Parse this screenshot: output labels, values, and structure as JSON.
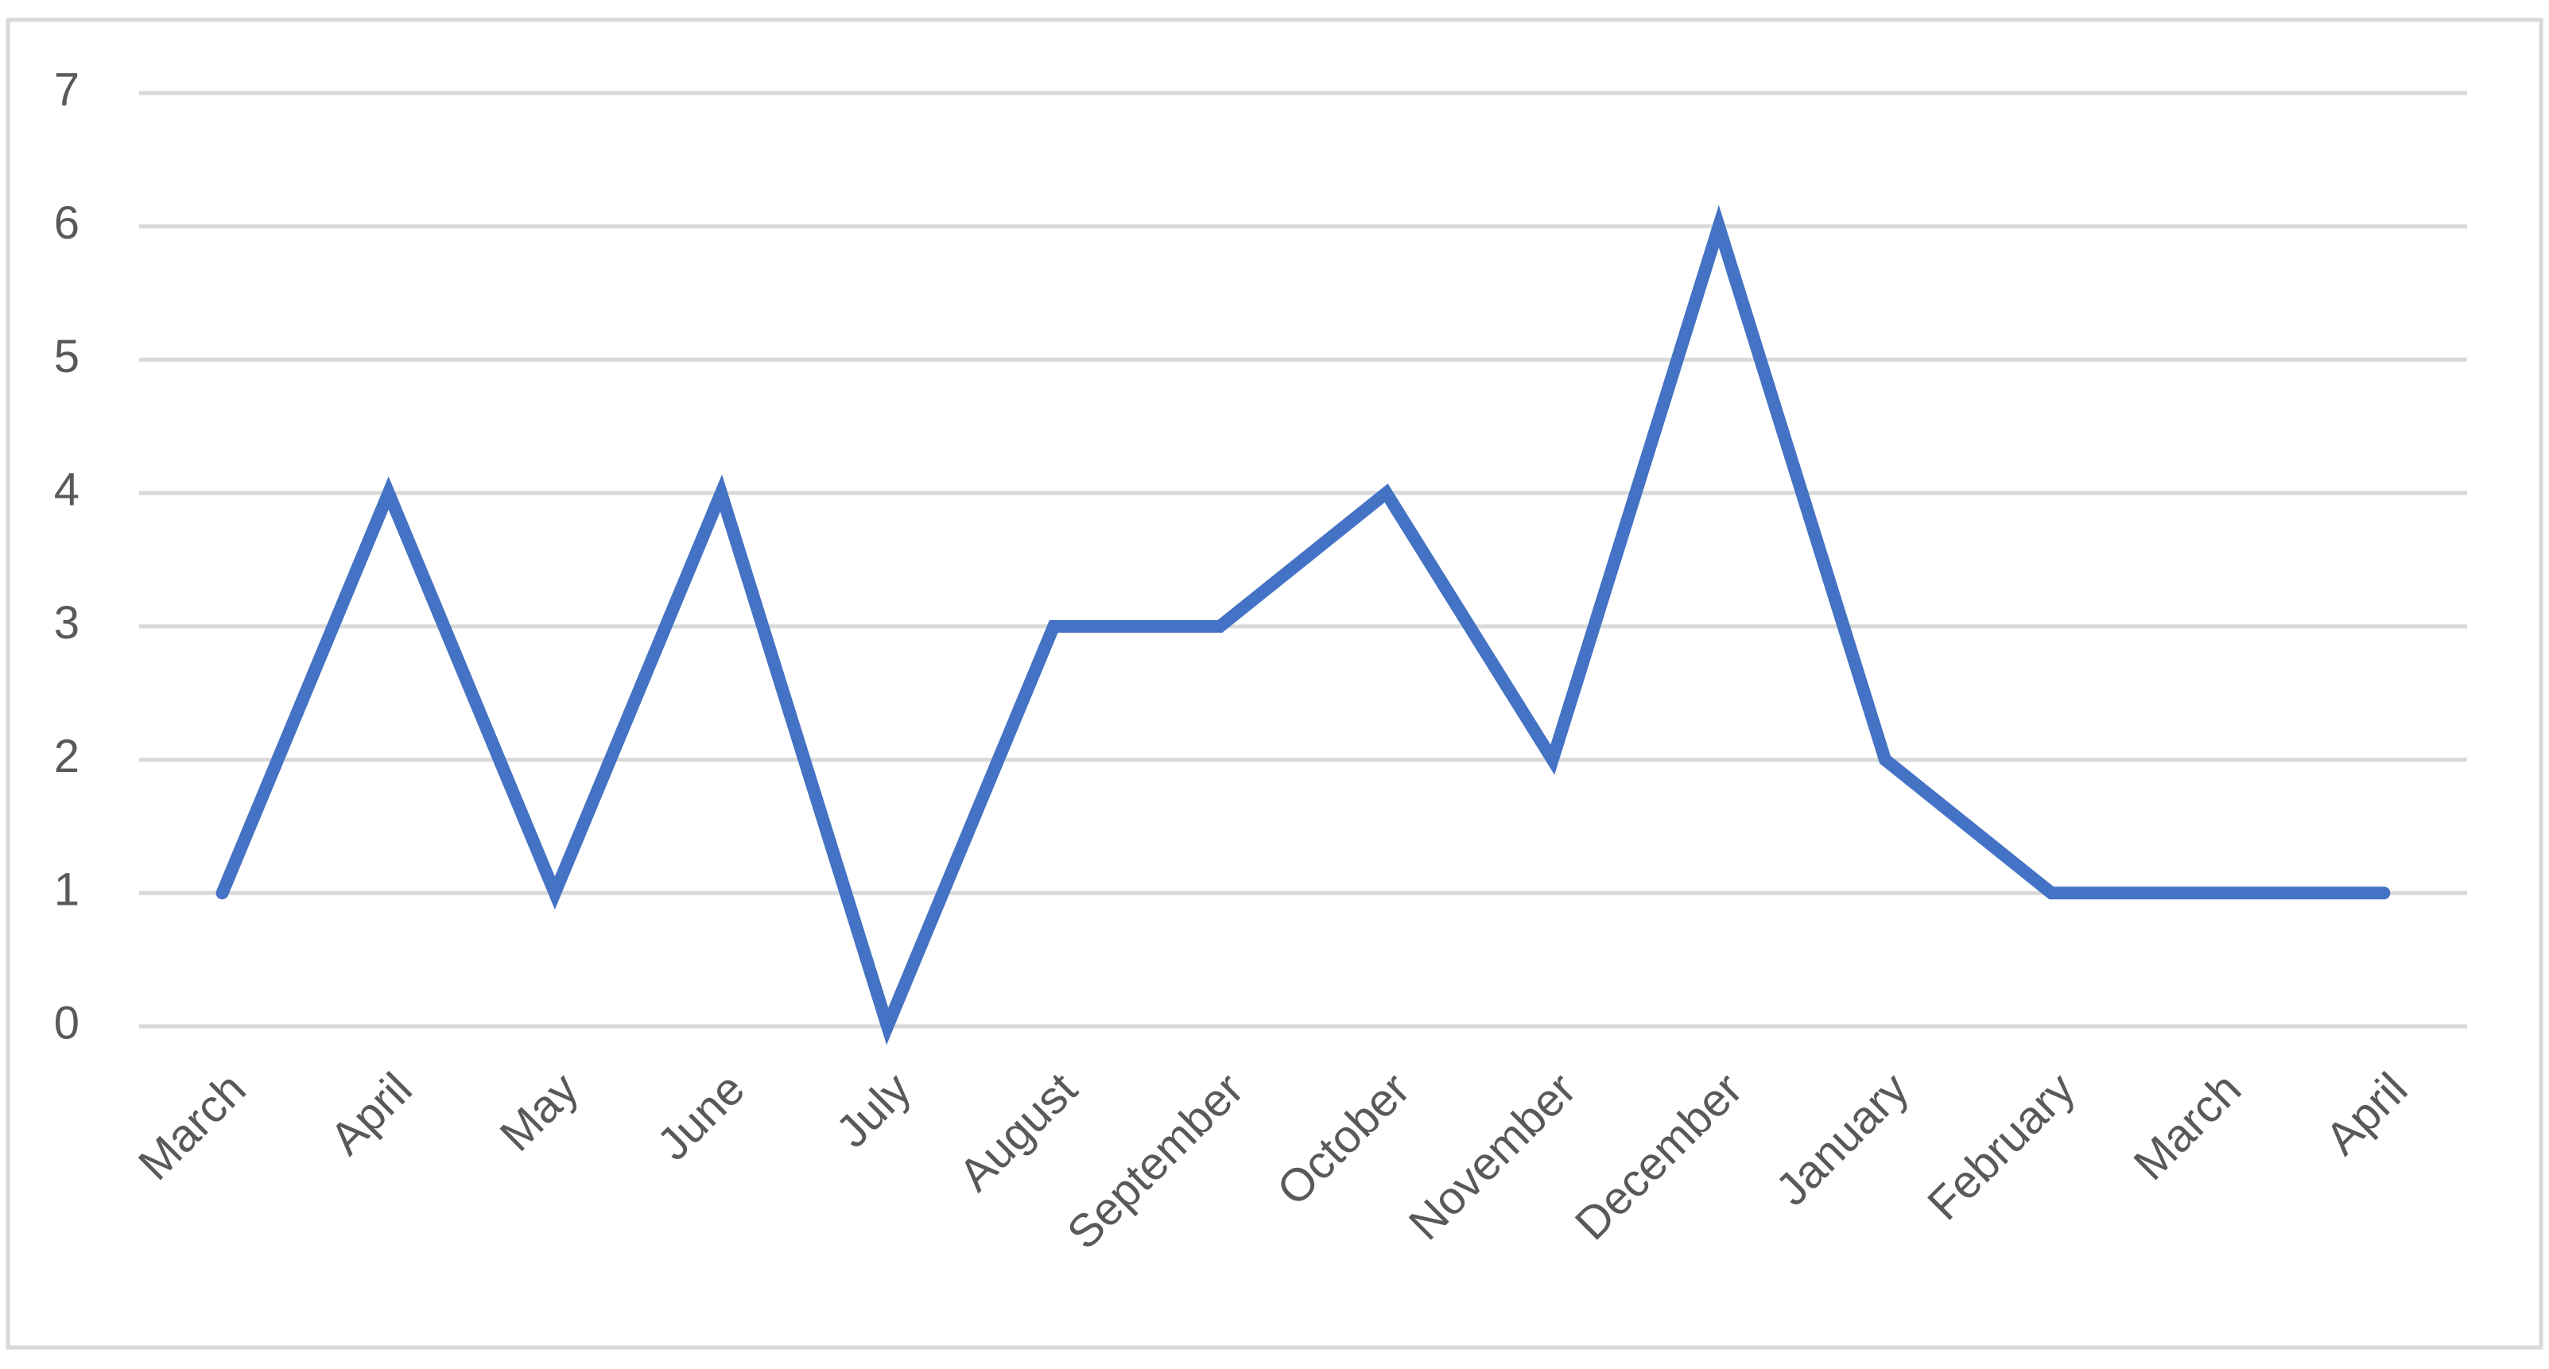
{
  "chart_data": {
    "type": "line",
    "categories": [
      "March",
      "April",
      "May",
      "June",
      "July",
      "August",
      "September",
      "October",
      "November",
      "December",
      "January",
      "February",
      "March",
      "April"
    ],
    "values": [
      1,
      4,
      1,
      4,
      0,
      3,
      3,
      4,
      2,
      6,
      2,
      1,
      1,
      1
    ],
    "color": "#4472c4",
    "ylim": [
      0,
      7
    ],
    "yticks": [
      0,
      1,
      2,
      3,
      4,
      5,
      6,
      7
    ],
    "grid": true
  }
}
